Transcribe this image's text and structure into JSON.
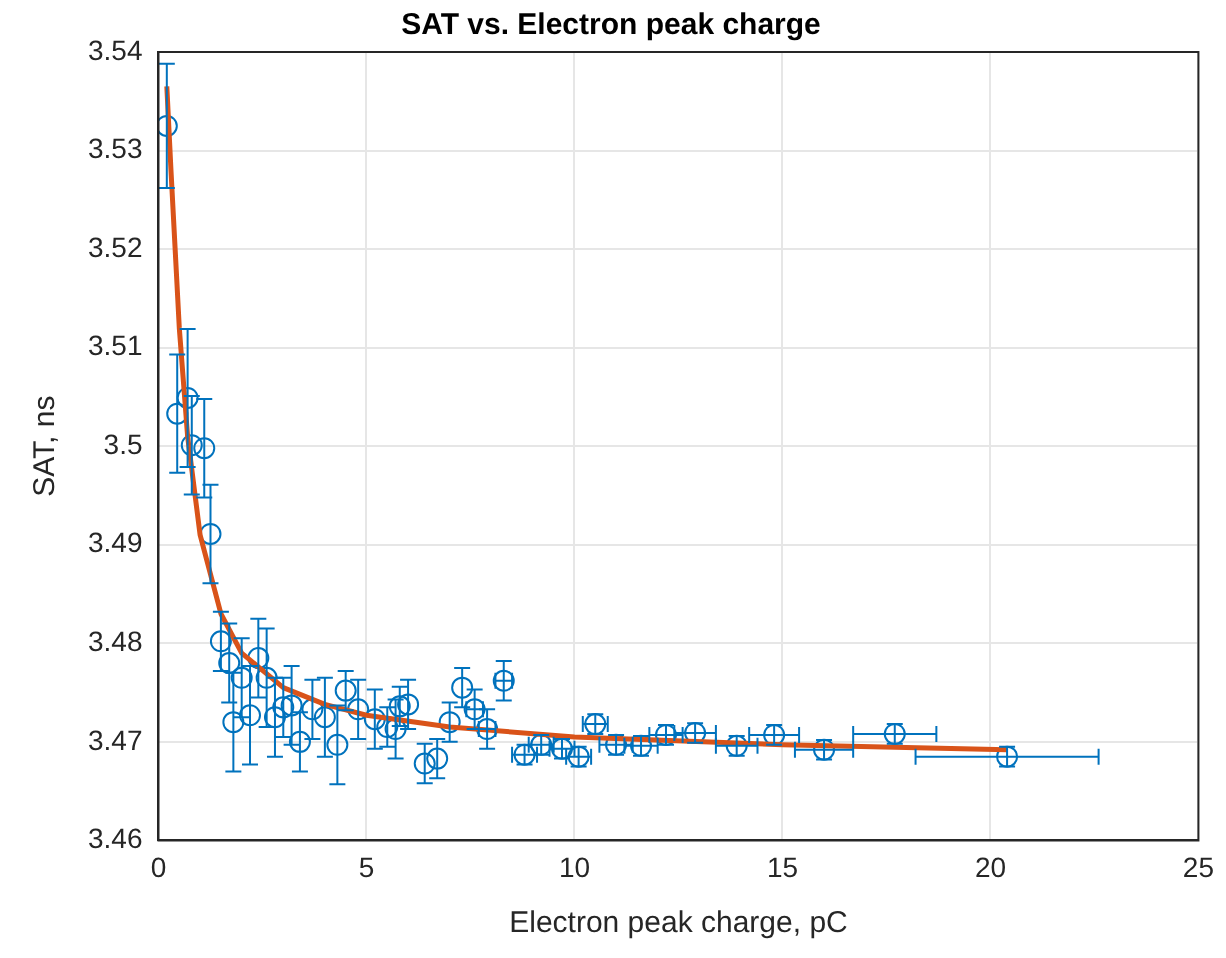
{
  "chart_data": {
    "type": "scatter",
    "title": "SAT vs. Electron peak charge",
    "xlabel": "Electron peak charge, pC",
    "ylabel": "SAT, ns",
    "xlim": [
      0,
      25
    ],
    "xticks": [
      0,
      5,
      10,
      15,
      20,
      25
    ],
    "ylim": [
      3.46,
      3.54
    ],
    "yticks": [
      3.46,
      3.47,
      3.48,
      3.49,
      3.5,
      3.51,
      3.52,
      3.53,
      3.54
    ],
    "grid": true,
    "legend": false,
    "marker": "circle",
    "series": [
      {
        "type": "scatter",
        "color": "#0072bd",
        "x": [
          0.2,
          0.45,
          0.7,
          0.8,
          1.1,
          1.25,
          1.5,
          1.7,
          1.8,
          2.0,
          2.2,
          2.4,
          2.6,
          2.8,
          3.0,
          3.2,
          3.4,
          3.7,
          4.0,
          4.3,
          4.5,
          4.8,
          5.2,
          5.5,
          5.7,
          5.8,
          6.0,
          6.4,
          6.7,
          7.0,
          7.3,
          7.6,
          7.9,
          8.3,
          8.8,
          9.2,
          9.7,
          10.1,
          10.5,
          11.0,
          11.6,
          12.2,
          12.9,
          13.9,
          14.8,
          16.0,
          17.7,
          20.4
        ],
        "values": [
          3.5325,
          3.5033,
          3.5049,
          3.5001,
          3.4998,
          3.4911,
          3.4802,
          3.478,
          3.472,
          3.4765,
          3.4727,
          3.4785,
          3.4765,
          3.4725,
          3.4735,
          3.4737,
          3.47,
          3.4733,
          3.4725,
          3.4697,
          3.4752,
          3.4733,
          3.4723,
          3.4715,
          3.4713,
          3.4736,
          3.4738,
          3.4678,
          3.4683,
          3.472,
          3.4755,
          3.4733,
          3.4713,
          3.4762,
          3.4687,
          3.4697,
          3.4693,
          3.4685,
          3.4718,
          3.4697,
          3.4696,
          3.4707,
          3.4709,
          3.4696,
          3.4707,
          3.4692,
          3.4708,
          3.4685
        ],
        "errors": [
          0.0063,
          0.006,
          0.007,
          0.005,
          0.005,
          0.005,
          0.003,
          0.004,
          0.005,
          0.004,
          0.005,
          0.004,
          0.005,
          0.004,
          0.003,
          0.004,
          0.003,
          0.003,
          0.004,
          0.004,
          0.002,
          0.003,
          0.003,
          0.002,
          0.003,
          0.002,
          0.0025,
          0.002,
          0.002,
          0.002,
          0.002,
          0.002,
          0.002,
          0.002,
          0.001,
          0.001,
          0.001,
          0.001,
          0.001,
          0.001,
          0.001,
          0.001,
          0.001,
          0.001,
          0.001,
          0.001,
          0.001,
          0.001
        ],
        "xerrors": [
          null,
          null,
          null,
          null,
          null,
          null,
          null,
          null,
          null,
          null,
          null,
          null,
          null,
          null,
          null,
          null,
          null,
          null,
          null,
          null,
          null,
          null,
          null,
          null,
          null,
          null,
          null,
          null,
          null,
          null,
          null,
          0.2,
          0.2,
          0.2,
          0.3,
          0.3,
          0.3,
          0.3,
          0.3,
          0.4,
          0.4,
          0.4,
          0.5,
          0.5,
          0.6,
          0.7,
          1.0,
          2.2
        ]
      },
      {
        "type": "line",
        "color": "#d95319",
        "marker": "none",
        "x": [
          0.2,
          0.3,
          0.5,
          0.7,
          1.0,
          1.5,
          2.0,
          3.0,
          4.0,
          5.0,
          7.0,
          10.0,
          15.0,
          20.4
        ],
        "values": [
          3.5365,
          3.528,
          3.512,
          3.501,
          3.491,
          3.483,
          3.479,
          3.4755,
          3.4738,
          3.4727,
          3.4715,
          3.4705,
          3.4697,
          3.4692
        ]
      }
    ]
  }
}
